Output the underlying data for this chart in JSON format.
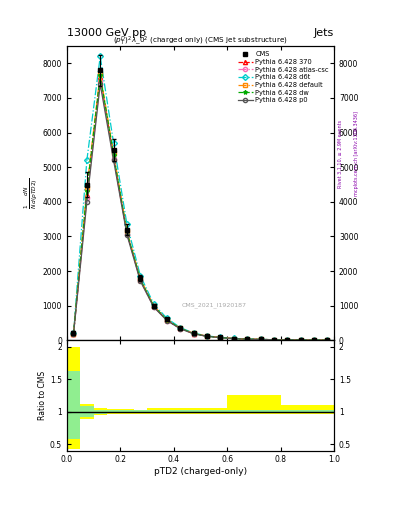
{
  "title_top": "13000 GeV pp",
  "title_right": "Jets",
  "xlabel": "pTD2 (charged-only)",
  "ylabel": "1/N dN / d(pTD2)",
  "ratio_ylabel": "Ratio to CMS",
  "watermark": "CMS_2021_I1920187",
  "right_label": "mcplots.cern.ch [arXiv:1306.3436]",
  "right_label2": "Rivet 3.1.10, ≥ 2.9M events",
  "ylim_main": [
    0,
    8500
  ],
  "ylim_ratio": [
    0.4,
    2.1
  ],
  "xlim": [
    0,
    1.0
  ],
  "bin_edges": [
    0.0,
    0.05,
    0.1,
    0.15,
    0.2,
    0.25,
    0.3,
    0.35,
    0.4,
    0.45,
    0.5,
    0.55,
    0.6,
    0.65,
    0.7,
    0.75,
    0.8,
    0.85,
    0.9,
    0.95,
    1.0
  ],
  "cms_values": [
    200,
    4500,
    7800,
    5500,
    3200,
    1800,
    1000,
    600,
    350,
    200,
    120,
    80,
    50,
    35,
    25,
    15,
    10,
    8,
    5,
    3
  ],
  "cms_errors": [
    60,
    350,
    450,
    320,
    160,
    90,
    45,
    28,
    18,
    12,
    9,
    6,
    4,
    3,
    2,
    2,
    1,
    1,
    1,
    1
  ],
  "series": [
    {
      "label": "Pythia 6.428 370",
      "color": "#ff0000",
      "marker": "^",
      "linestyle": "--",
      "values": [
        180,
        4200,
        7600,
        5300,
        3100,
        1750,
        980,
        580,
        340,
        190,
        115,
        78,
        48,
        33,
        24,
        14,
        9,
        7,
        5,
        3
      ]
    },
    {
      "label": "Pythia 6.428 atlas-csc",
      "color": "#ff69b4",
      "marker": "o",
      "linestyle": "-.",
      "values": [
        175,
        4100,
        7500,
        5250,
        3080,
        1730,
        970,
        570,
        335,
        188,
        113,
        76,
        47,
        32,
        23,
        14,
        9,
        7,
        4,
        3
      ]
    },
    {
      "label": "Pythia 6.428 d6t",
      "color": "#00cccc",
      "marker": "D",
      "linestyle": "-.",
      "values": [
        220,
        5200,
        8200,
        5700,
        3350,
        1870,
        1050,
        630,
        365,
        205,
        125,
        83,
        52,
        36,
        26,
        16,
        11,
        8,
        5,
        3
      ]
    },
    {
      "label": "Pythia 6.428 default",
      "color": "#ff8800",
      "marker": "s",
      "linestyle": "-.",
      "values": [
        190,
        4400,
        7700,
        5400,
        3150,
        1780,
        990,
        595,
        345,
        195,
        118,
        79,
        49,
        34,
        25,
        15,
        10,
        8,
        5,
        3
      ]
    },
    {
      "label": "Pythia 6.428 dw",
      "color": "#00aa00",
      "marker": "*",
      "linestyle": "--",
      "values": [
        185,
        4300,
        7650,
        5350,
        3120,
        1760,
        985,
        585,
        342,
        192,
        116,
        77,
        48,
        33,
        24,
        15,
        9,
        7,
        5,
        3
      ]
    },
    {
      "label": "Pythia 6.428 p0",
      "color": "#555555",
      "marker": "o",
      "linestyle": "-",
      "values": [
        170,
        4000,
        7400,
        5200,
        3050,
        1710,
        960,
        565,
        330,
        185,
        112,
        75,
        46,
        31,
        22,
        13,
        9,
        7,
        4,
        2
      ]
    }
  ],
  "ratio_yellow_lo": [
    0.42,
    0.88,
    0.95,
    0.96,
    0.96,
    0.97,
    0.97,
    0.97,
    0.97,
    0.97,
    0.97,
    0.97,
    0.97,
    0.97,
    0.97,
    0.97,
    0.97,
    0.97,
    0.97,
    0.97
  ],
  "ratio_yellow_hi": [
    2.0,
    1.12,
    1.05,
    1.04,
    1.04,
    1.03,
    1.05,
    1.05,
    1.05,
    1.05,
    1.05,
    1.05,
    1.25,
    1.25,
    1.25,
    1.25,
    1.1,
    1.1,
    1.1,
    1.1
  ],
  "ratio_green_lo": [
    0.58,
    0.92,
    0.97,
    0.975,
    0.975,
    0.98,
    0.98,
    0.98,
    0.98,
    0.98,
    0.98,
    0.98,
    0.98,
    0.98,
    0.98,
    0.98,
    0.98,
    0.98,
    0.98,
    0.98
  ],
  "ratio_green_hi": [
    1.62,
    1.08,
    1.03,
    1.025,
    1.025,
    1.02,
    1.02,
    1.02,
    1.02,
    1.02,
    1.02,
    1.02,
    1.02,
    1.02,
    1.02,
    1.02,
    1.02,
    1.02,
    1.02,
    1.02
  ],
  "yticks_main": [
    0,
    1000,
    2000,
    3000,
    4000,
    5000,
    6000,
    7000,
    8000
  ],
  "ytick_labels_main": [
    "0",
    "1000",
    "2000",
    "3000",
    "4000",
    "5000",
    "6000",
    "7000",
    "8000"
  ],
  "yticks_ratio": [
    0.5,
    1.0,
    1.5,
    2.0
  ],
  "ytick_labels_ratio": [
    "0.5",
    "1",
    "1.5",
    "2"
  ]
}
